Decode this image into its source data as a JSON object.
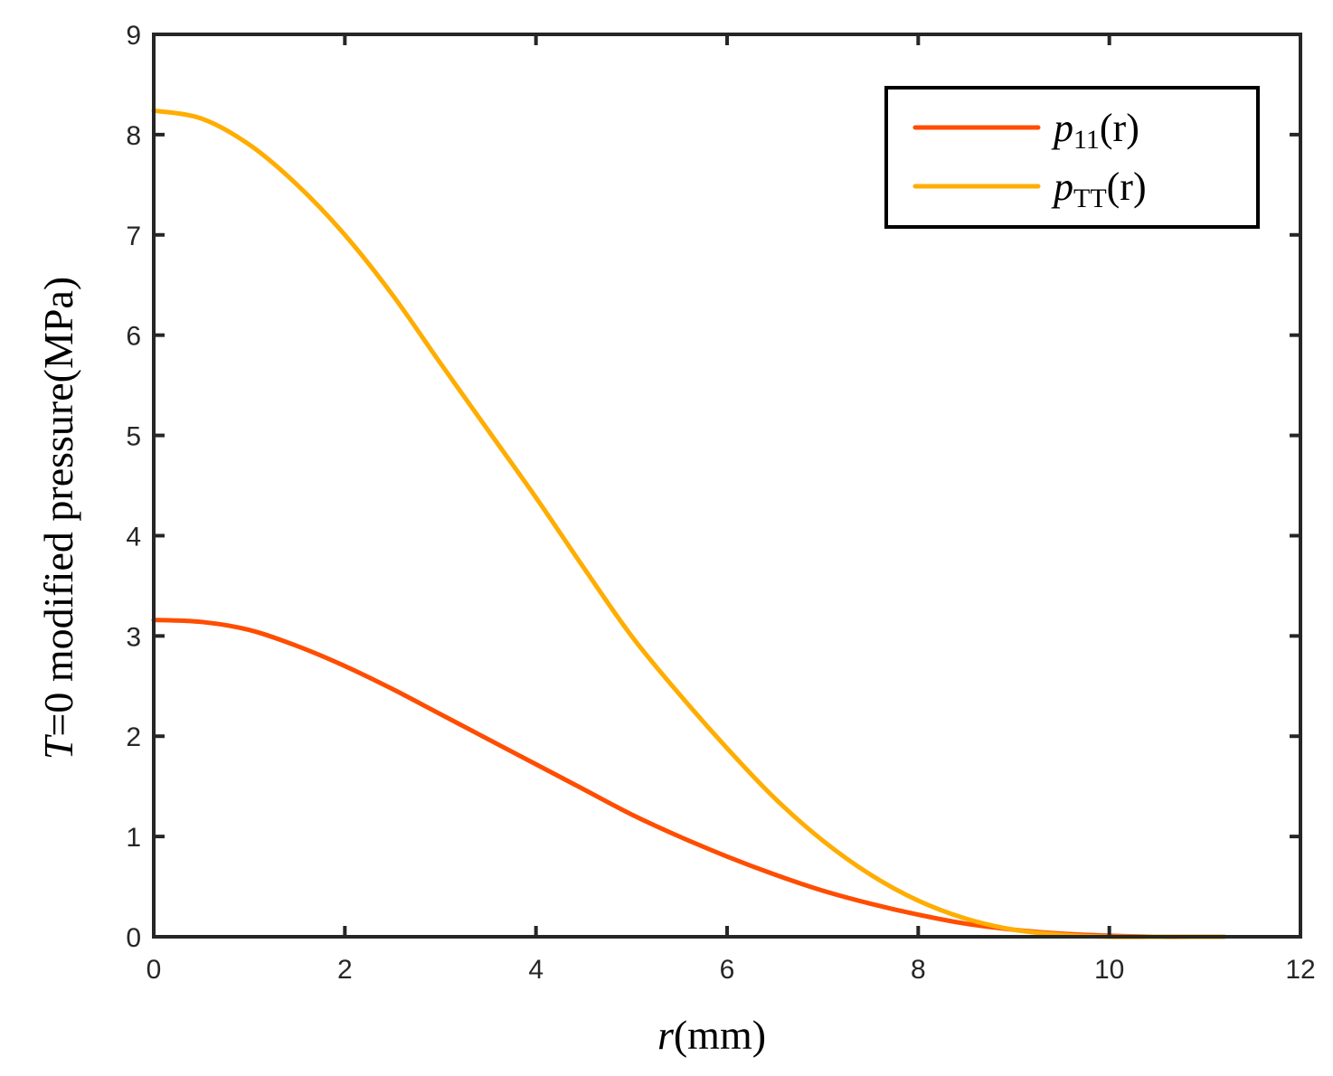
{
  "chart_data": {
    "type": "line",
    "xlabel": {
      "var": "r",
      "unit": "(mm)"
    },
    "ylabel": {
      "var": "T",
      "rest": "=0 modified pressure(MPa)"
    },
    "xlim": [
      0,
      12
    ],
    "ylim": [
      0,
      9
    ],
    "xticks": [
      "0",
      "2",
      "4",
      "6",
      "8",
      "10",
      "12"
    ],
    "yticks": [
      "0",
      "1",
      "2",
      "3",
      "4",
      "5",
      "6",
      "7",
      "8",
      "9"
    ],
    "grid": false,
    "legend_position": "top-right",
    "series": [
      {
        "name_main": "p",
        "name_sub": "11",
        "name_tail": "(r)",
        "color": "#ff4d00",
        "x": [
          0,
          0.5,
          1,
          1.5,
          2,
          2.5,
          3,
          3.5,
          4,
          4.5,
          5,
          5.5,
          6,
          6.5,
          7,
          7.5,
          8,
          8.5,
          9,
          9.5,
          10,
          10.5,
          11,
          11.2
        ],
        "y": [
          3.16,
          3.14,
          3.06,
          2.9,
          2.7,
          2.47,
          2.22,
          1.97,
          1.72,
          1.47,
          1.22,
          1.0,
          0.8,
          0.62,
          0.46,
          0.33,
          0.22,
          0.13,
          0.07,
          0.03,
          0.01,
          0.0,
          0.0,
          0.0
        ]
      },
      {
        "name_main": "p",
        "name_sub": "TT",
        "name_tail": "(r)",
        "color": "#ffad00",
        "x": [
          0,
          0.5,
          1,
          1.5,
          2,
          2.5,
          3,
          3.5,
          4,
          4.5,
          5,
          5.5,
          6,
          6.5,
          7,
          7.5,
          8,
          8.5,
          9,
          9.5,
          10,
          10.5,
          11,
          11.2
        ],
        "y": [
          8.24,
          8.16,
          7.9,
          7.5,
          7.0,
          6.4,
          5.72,
          5.05,
          4.38,
          3.68,
          3.0,
          2.42,
          1.88,
          1.38,
          0.96,
          0.62,
          0.36,
          0.18,
          0.07,
          0.02,
          0.0,
          0.0,
          0.0,
          0.0
        ]
      }
    ]
  }
}
